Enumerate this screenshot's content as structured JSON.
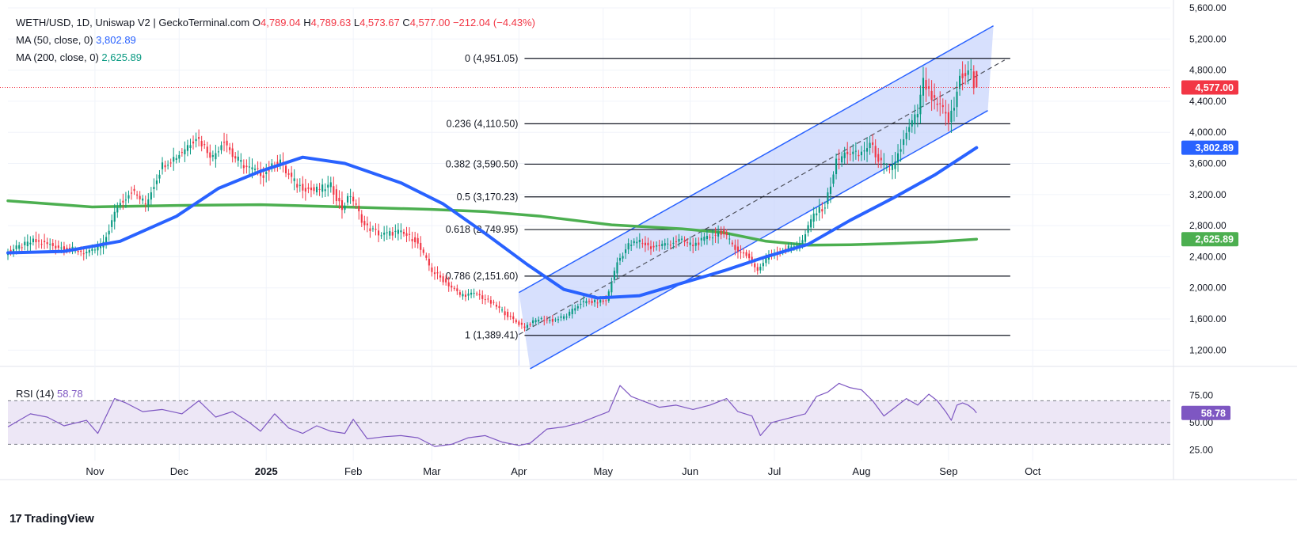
{
  "header": {
    "symbol": "WETH/USD, 1D, Uniswap V2 | GeckoTerminal.com",
    "o_label": "O",
    "o_value": "4,789.04",
    "h_label": "H",
    "h_value": "4,789.63",
    "l_label": "L",
    "l_value": "4,573.67",
    "c_label": "C",
    "c_value": "4,577.00",
    "change": "−212.04 (−4.43%)",
    "ma50_label": "MA (50, close, 0)",
    "ma50_value": "3,802.89",
    "ma200_label": "MA (200, close, 0)",
    "ma200_value": "2,625.89"
  },
  "rsi": {
    "label": "RSI (14)",
    "value": "58.78"
  },
  "brand": {
    "logo_text": "17",
    "name": "TradingView"
  },
  "colors": {
    "up": "#089981",
    "down": "#f23645",
    "ma50": "#2962ff",
    "ma200": "#4caf50",
    "channel_fill": "#c9d6fc",
    "channel_line": "#2962ff",
    "fib_line": "#131722",
    "rsi_line": "#7e57c2",
    "rsi_band": "#ede7f6",
    "price_line": "#f23645"
  },
  "chart_data": [
    {
      "type": "candlestick",
      "title": "WETH/USD, 1D, Uniswap V2 | GeckoTerminal.com",
      "y_axis_side": "right",
      "ylim": [
        1000,
        5600
      ],
      "y_ticks": [
        "1,200.00",
        "1,600.00",
        "2,000.00",
        "2,400.00",
        "2,800.00",
        "3,200.00",
        "3,600.00",
        "4,000.00",
        "4,400.00",
        "4,800.00",
        "5,200.00",
        "5,600.00"
      ],
      "x_ticks": [
        "Nov",
        "Dec",
        "2025",
        "Feb",
        "Mar",
        "Apr",
        "May",
        "Jun",
        "Jul",
        "Aug",
        "Sep",
        "Oct"
      ],
      "x_tick_days": [
        31,
        61,
        92,
        123,
        151,
        182,
        212,
        243,
        273,
        304,
        335,
        365
      ],
      "x_range_days": [
        0,
        414
      ],
      "last_day": 345,
      "price_points": [
        [
          0,
          2450
        ],
        [
          10,
          2600
        ],
        [
          20,
          2520
        ],
        [
          30,
          2450
        ],
        [
          35,
          2560
        ],
        [
          40,
          3050
        ],
        [
          45,
          3250
        ],
        [
          50,
          3080
        ],
        [
          56,
          3580
        ],
        [
          62,
          3720
        ],
        [
          68,
          3950
        ],
        [
          74,
          3680
        ],
        [
          78,
          3920
        ],
        [
          81,
          3700
        ],
        [
          86,
          3550
        ],
        [
          92,
          3460
        ],
        [
          98,
          3650
        ],
        [
          100,
          3490
        ],
        [
          104,
          3320
        ],
        [
          110,
          3250
        ],
        [
          116,
          3310
        ],
        [
          120,
          3020
        ],
        [
          123,
          3200
        ],
        [
          128,
          2800
        ],
        [
          134,
          2680
        ],
        [
          140,
          2720
        ],
        [
          146,
          2620
        ],
        [
          152,
          2220
        ],
        [
          158,
          2040
        ],
        [
          162,
          1910
        ],
        [
          168,
          1920
        ],
        [
          175,
          1760
        ],
        [
          182,
          1560
        ],
        [
          185,
          1500
        ],
        [
          190,
          1600
        ],
        [
          195,
          1580
        ],
        [
          200,
          1640
        ],
        [
          205,
          1810
        ],
        [
          210,
          1820
        ],
        [
          214,
          1830
        ],
        [
          218,
          2330
        ],
        [
          222,
          2550
        ],
        [
          226,
          2600
        ],
        [
          230,
          2520
        ],
        [
          235,
          2560
        ],
        [
          240,
          2610
        ],
        [
          245,
          2550
        ],
        [
          250,
          2640
        ],
        [
          255,
          2720
        ],
        [
          258,
          2600
        ],
        [
          262,
          2450
        ],
        [
          265,
          2400
        ],
        [
          268,
          2220
        ],
        [
          272,
          2430
        ],
        [
          276,
          2470
        ],
        [
          280,
          2530
        ],
        [
          284,
          2600
        ],
        [
          288,
          2950
        ],
        [
          292,
          3050
        ],
        [
          296,
          3620
        ],
        [
          300,
          3750
        ],
        [
          304,
          3700
        ],
        [
          308,
          3850
        ],
        [
          312,
          3600
        ],
        [
          315,
          3480
        ],
        [
          318,
          3720
        ],
        [
          322,
          4050
        ],
        [
          325,
          4250
        ],
        [
          327,
          4650
        ],
        [
          329,
          4500
        ],
        [
          331,
          4380
        ],
        [
          334,
          4280
        ],
        [
          336,
          4150
        ],
        [
          338,
          4320
        ],
        [
          340,
          4720
        ],
        [
          342,
          4760
        ],
        [
          344,
          4789
        ],
        [
          345,
          4577
        ]
      ],
      "last_candle": {
        "open": 4789.04,
        "high": 4789.63,
        "low": 4573.67,
        "close": 4577.0
      },
      "overlays": {
        "ma50_points": [
          [
            0,
            2450
          ],
          [
            20,
            2470
          ],
          [
            40,
            2600
          ],
          [
            60,
            2920
          ],
          [
            75,
            3280
          ],
          [
            90,
            3500
          ],
          [
            105,
            3680
          ],
          [
            120,
            3600
          ],
          [
            140,
            3350
          ],
          [
            155,
            3080
          ],
          [
            170,
            2700
          ],
          [
            185,
            2300
          ],
          [
            198,
            1980
          ],
          [
            210,
            1870
          ],
          [
            225,
            1900
          ],
          [
            240,
            2060
          ],
          [
            255,
            2220
          ],
          [
            270,
            2400
          ],
          [
            285,
            2560
          ],
          [
            300,
            2870
          ],
          [
            315,
            3150
          ],
          [
            330,
            3450
          ],
          [
            345,
            3802.89
          ]
        ],
        "ma200_points": [
          [
            0,
            3120
          ],
          [
            30,
            3040
          ],
          [
            60,
            3060
          ],
          [
            90,
            3070
          ],
          [
            120,
            3040
          ],
          [
            150,
            3010
          ],
          [
            170,
            2980
          ],
          [
            190,
            2920
          ],
          [
            215,
            2810
          ],
          [
            240,
            2760
          ],
          [
            255,
            2710
          ],
          [
            270,
            2600
          ],
          [
            285,
            2550
          ],
          [
            300,
            2555
          ],
          [
            315,
            2570
          ],
          [
            330,
            2590
          ],
          [
            345,
            2625.89
          ]
        ],
        "channel_upper_start": [
          182,
          1940
        ],
        "channel_upper_end": [
          351,
          5370
        ],
        "channel_mid_start": [
          182,
          1400
        ],
        "channel_mid_end": [
          355,
          4930
        ],
        "channel_lower_start": [
          186,
          960
        ],
        "channel_lower_end": [
          349,
          4280
        ],
        "fib_start_day": 184,
        "fib_end_day": 357,
        "fib_levels": [
          {
            "label": "0 (4,951.05)",
            "price": 4951.05
          },
          {
            "label": "0.236 (4,110.50)",
            "price": 4110.5
          },
          {
            "label": "0.382 (3,590.50)",
            "price": 3590.5
          },
          {
            "label": "0.5 (3,170.23)",
            "price": 3170.23
          },
          {
            "label": "0.618 (2,749.95)",
            "price": 2749.95
          },
          {
            "label": "0.786 (2,151.60)",
            "price": 2151.6
          },
          {
            "label": "1 (1,389.41)",
            "price": 1389.41
          }
        ]
      },
      "price_labels": [
        {
          "text": "4,577.00",
          "value": 4577.0,
          "color": "#f23645"
        },
        {
          "text": "3,802.89",
          "value": 3802.89,
          "color": "#2962ff"
        },
        {
          "text": "2,625.89",
          "value": 2625.89,
          "color": "#4caf50"
        }
      ]
    },
    {
      "type": "line",
      "title": "RSI (14)",
      "ylim": [
        15,
        95
      ],
      "y_ticks": [
        "25.00",
        "50.00",
        "75.00"
      ],
      "band": [
        30,
        70
      ],
      "current": {
        "text": "58.78",
        "value": 58.78
      },
      "rsi_points": [
        [
          0,
          46
        ],
        [
          8,
          58
        ],
        [
          14,
          55
        ],
        [
          20,
          47
        ],
        [
          28,
          52
        ],
        [
          32,
          40
        ],
        [
          38,
          72
        ],
        [
          42,
          68
        ],
        [
          48,
          60
        ],
        [
          55,
          62
        ],
        [
          62,
          58
        ],
        [
          68,
          70
        ],
        [
          74,
          55
        ],
        [
          80,
          60
        ],
        [
          86,
          50
        ],
        [
          90,
          42
        ],
        [
          95,
          58
        ],
        [
          100,
          45
        ],
        [
          105,
          40
        ],
        [
          110,
          47
        ],
        [
          115,
          42
        ],
        [
          120,
          40
        ],
        [
          123,
          53
        ],
        [
          128,
          35
        ],
        [
          134,
          37
        ],
        [
          140,
          38
        ],
        [
          146,
          36
        ],
        [
          152,
          28
        ],
        [
          158,
          30
        ],
        [
          164,
          36
        ],
        [
          170,
          38
        ],
        [
          176,
          32
        ],
        [
          182,
          29
        ],
        [
          186,
          31
        ],
        [
          192,
          44
        ],
        [
          198,
          46
        ],
        [
          204,
          50
        ],
        [
          210,
          56
        ],
        [
          214,
          60
        ],
        [
          218,
          84
        ],
        [
          222,
          74
        ],
        [
          226,
          70
        ],
        [
          232,
          64
        ],
        [
          238,
          66
        ],
        [
          244,
          62
        ],
        [
          250,
          66
        ],
        [
          256,
          72
        ],
        [
          260,
          60
        ],
        [
          265,
          56
        ],
        [
          268,
          38
        ],
        [
          272,
          50
        ],
        [
          278,
          54
        ],
        [
          284,
          58
        ],
        [
          288,
          74
        ],
        [
          292,
          78
        ],
        [
          296,
          86
        ],
        [
          300,
          82
        ],
        [
          304,
          80
        ],
        [
          308,
          70
        ],
        [
          312,
          56
        ],
        [
          316,
          64
        ],
        [
          320,
          72
        ],
        [
          324,
          66
        ],
        [
          328,
          76
        ],
        [
          331,
          70
        ],
        [
          334,
          60
        ],
        [
          336,
          52
        ],
        [
          338,
          66
        ],
        [
          340,
          68
        ],
        [
          342,
          66
        ],
        [
          344,
          62
        ],
        [
          345,
          58.78
        ]
      ]
    }
  ]
}
